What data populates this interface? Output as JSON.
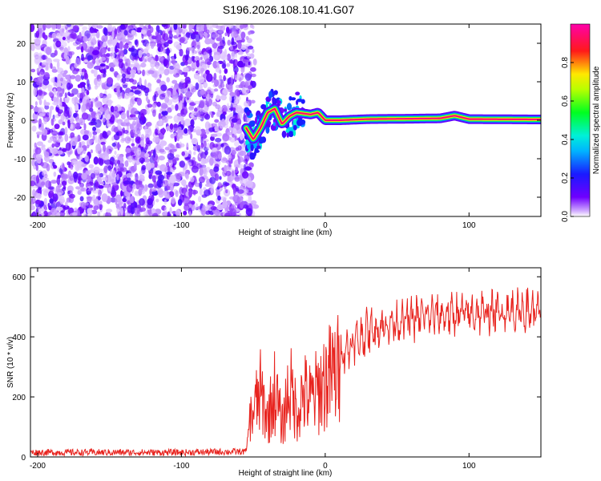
{
  "title": "S196.2026.108.10.41.G07",
  "colors": {
    "spectrogram_noise": "#6f00ff",
    "snr_line": "#e8241f",
    "axes": "#000000"
  },
  "chart_data": [
    {
      "type": "heatmap",
      "name": "spectrogram",
      "xlabel": "Height of straight line (km)",
      "ylabel": "Frequency (Hz)",
      "xlim": [
        -205,
        150
      ],
      "ylim": [
        -25,
        25
      ],
      "xticks": [
        -200,
        -100,
        0,
        100
      ],
      "xtick_labels": [
        "-200",
        "-100",
        "0",
        "100"
      ],
      "yticks": [
        -20,
        -10,
        0,
        10,
        20
      ],
      "ytick_labels": [
        "-20",
        "-10",
        "0",
        "10",
        "20"
      ],
      "colorbar": {
        "label": "Normalized spectral amplitude",
        "range": [
          0,
          1
        ],
        "ticks": [
          0.0,
          0.2,
          0.4,
          0.6,
          0.8
        ],
        "tick_labels": [
          "0.0",
          "0.2",
          "0.4",
          "0.6",
          "0.8"
        ],
        "colormap": "purple-blue-cyan-green-yellow-red-magenta"
      },
      "regions": [
        {
          "x_range": [
            -205,
            -52
          ],
          "description_value": "broadband noise",
          "amplitude": 0.1
        },
        {
          "x_range": [
            -52,
            -15
          ],
          "description_value": "signal emerging",
          "amplitude": 0.35
        },
        {
          "x_range": [
            -15,
            150
          ],
          "description_value": "coherent signal",
          "amplitude": 0.95
        }
      ],
      "signal_track": [
        {
          "x": -55,
          "y": -2
        },
        {
          "x": -50,
          "y": -5
        },
        {
          "x": -45,
          "y": -2
        },
        {
          "x": -40,
          "y": 2
        },
        {
          "x": -35,
          "y": 3
        },
        {
          "x": -30,
          "y": -1
        },
        {
          "x": -25,
          "y": 1
        },
        {
          "x": -20,
          "y": 2
        },
        {
          "x": -10,
          "y": 1.5
        },
        {
          "x": -5,
          "y": 2
        },
        {
          "x": 0,
          "y": 0
        },
        {
          "x": 10,
          "y": 0
        },
        {
          "x": 30,
          "y": 0.3
        },
        {
          "x": 60,
          "y": 0.4
        },
        {
          "x": 80,
          "y": 0.5
        },
        {
          "x": 90,
          "y": 1.2
        },
        {
          "x": 100,
          "y": 0.3
        },
        {
          "x": 150,
          "y": 0.2
        }
      ]
    },
    {
      "type": "line",
      "name": "snr",
      "xlabel": "Height of straight line (km)",
      "ylabel": "SNR (10 * v/v)",
      "xlim": [
        -205,
        150
      ],
      "ylim": [
        0,
        630
      ],
      "xticks": [
        -200,
        -100,
        0,
        100
      ],
      "xtick_labels": [
        "-200",
        "-100",
        "0",
        "100"
      ],
      "yticks": [
        0,
        200,
        400,
        600
      ],
      "ytick_labels": [
        "0",
        "200",
        "400",
        "600"
      ],
      "series": [
        {
          "color": "#e8241f",
          "x": [
            -205,
            -150,
            -100,
            -55,
            -52,
            -45,
            -40,
            -35,
            -30,
            -25,
            -20,
            -15,
            -10,
            0,
            10,
            20,
            30,
            50,
            70,
            90,
            110,
            130,
            150
          ],
          "y": [
            15,
            15,
            15,
            18,
            150,
            250,
            150,
            260,
            120,
            280,
            180,
            250,
            220,
            300,
            340,
            380,
            420,
            450,
            470,
            475,
            480,
            485,
            490
          ]
        }
      ]
    }
  ]
}
